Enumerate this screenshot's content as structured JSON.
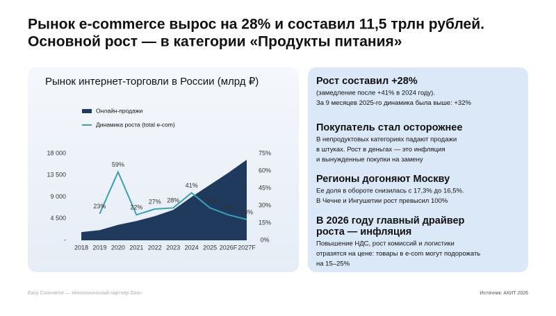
{
  "header": {
    "title": [
      "Рынок e-commerce вырос на 28% и составил 11,5 трлн рублей.",
      "Основной рост — в категории «Продукты питания»"
    ]
  },
  "chart_data": {
    "type": "combo",
    "title": "Рынок интернет-торговли в России (млрд ₽)",
    "categories": [
      "2018",
      "2019",
      "2020",
      "2021",
      "2022",
      "2023",
      "2024",
      "2025",
      "2026F",
      "2027F"
    ],
    "series": [
      {
        "name": "Онлайн-продажи",
        "type": "area",
        "color": "#1f3a5c",
        "values": [
          1700,
          2100,
          3200,
          4000,
          5000,
          6300,
          9000,
          11500,
          14000,
          16700
        ]
      },
      {
        "name": "Динамика роста (total e-com)",
        "type": "line",
        "axis": "y2",
        "color": "#3a9fb5",
        "values": [
          null,
          23,
          59,
          22,
          27,
          28,
          41,
          28,
          22,
          18
        ],
        "value_labels": [
          null,
          "23%",
          "59%",
          "22%",
          "27%",
          "28%",
          "41%",
          "28%",
          "22%",
          "18%"
        ]
      }
    ],
    "ylim": [
      0,
      18000
    ],
    "yticks": [
      {
        "value": 0,
        "label": "-"
      },
      {
        "value": 4500,
        "label": "4 500"
      },
      {
        "value": 9000,
        "label": "9 000"
      },
      {
        "value": 13500,
        "label": "13 500"
      },
      {
        "value": 18000,
        "label": "18 000"
      }
    ],
    "y2lim": [
      0,
      75
    ],
    "y2ticks": [
      {
        "value": 0,
        "label": "0%"
      },
      {
        "value": 15,
        "label": "15%"
      },
      {
        "value": 30,
        "label": "30%"
      },
      {
        "value": 45,
        "label": "45%"
      },
      {
        "value": 60,
        "label": "60%"
      },
      {
        "value": 75,
        "label": "75%"
      }
    ]
  },
  "panels": [
    {
      "heading": [
        "Рост составил +28%"
      ],
      "body": [
        "(замедление после +41% в 2024 году).",
        "За 9 месяцев 2025-го динамика была выше: +32%"
      ]
    },
    {
      "heading": [
        "Покупатель стал осторожнее"
      ],
      "body": [
        "В непродуктовых категориях падают продажи",
        "в штуках. Рост в деньгах — это инфляция",
        "и вынужденные покупки на замену"
      ]
    },
    {
      "heading": [
        "Регионы догоняют Москву"
      ],
      "body": [
        "Ее доля в обороте снизилась с 17,3% до 16,5%.",
        "В Чечне и Ингушетии рост превысил 100%"
      ]
    },
    {
      "heading": [
        "В 2026 году главный драйвер",
        "роста — инфляция"
      ],
      "body": [
        "Повышение НДС, рост комиссий и логистики",
        "отразятся на цене: товары в e-com могут подорожать",
        "на 15–25%"
      ]
    }
  ],
  "footer": {
    "left": "Easy Commerce — технологический партнёр Ozon",
    "right": "Источник: АКИТ 2026"
  }
}
